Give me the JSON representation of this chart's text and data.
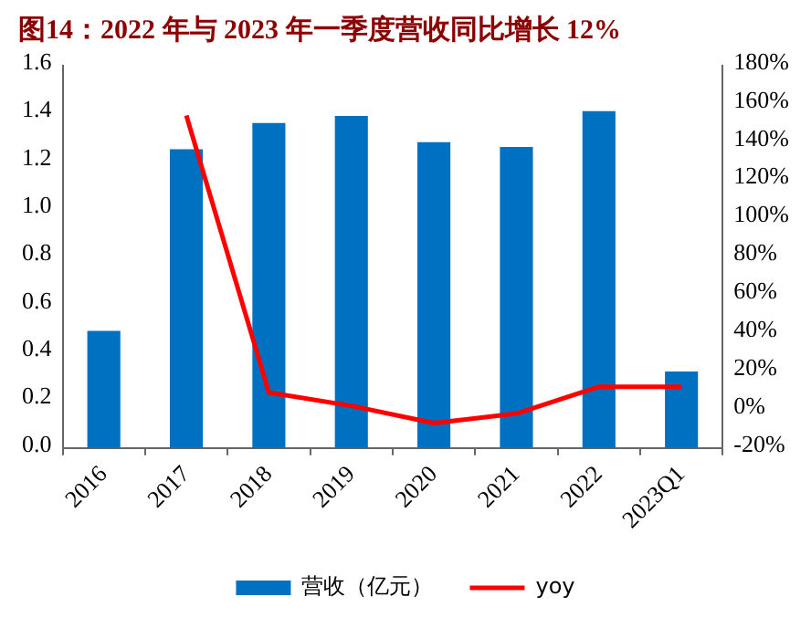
{
  "chart_data": {
    "type": "bar",
    "title": "图14：2022 年与 2023 年一季度营收同比增长 12%",
    "categories": [
      "2016",
      "2017",
      "2018",
      "2019",
      "2020",
      "2021",
      "2022",
      "2023Q1"
    ],
    "series": [
      {
        "name": "营收（亿元）",
        "color": "#0070c0",
        "values": [
          0.49,
          1.25,
          1.36,
          1.39,
          1.28,
          1.26,
          1.41,
          0.32
        ]
      },
      {
        "name": "yoy",
        "type": "line",
        "axis": "y2",
        "color": "#ff0000",
        "values": [
          null,
          154,
          9,
          2,
          -7,
          -2,
          12,
          12
        ]
      }
    ],
    "ylim": [
      0,
      1.6
    ],
    "yticks": [
      {
        "value": 0,
        "label": "0.0"
      },
      {
        "value": 0.2,
        "label": "0.2"
      },
      {
        "value": 0.4,
        "label": "0.4"
      },
      {
        "value": 0.6,
        "label": "0.6"
      },
      {
        "value": 0.8,
        "label": "0.8"
      },
      {
        "value": 1,
        "label": "1.0"
      },
      {
        "value": 1.2,
        "label": "1.2"
      },
      {
        "value": 1.4,
        "label": "1.4"
      },
      {
        "value": 1.6,
        "label": "1.6"
      }
    ],
    "y2lim": [
      -20,
      180
    ],
    "y2ticks": [
      {
        "value": -20,
        "label": "-20%"
      },
      {
        "value": 0,
        "label": "0%"
      },
      {
        "value": 20,
        "label": "20%"
      },
      {
        "value": 40,
        "label": "40%"
      },
      {
        "value": 60,
        "label": "60%"
      },
      {
        "value": 80,
        "label": "80%"
      },
      {
        "value": 100,
        "label": "100%"
      },
      {
        "value": 120,
        "label": "120%"
      },
      {
        "value": 140,
        "label": "140%"
      },
      {
        "value": 160,
        "label": "160%"
      },
      {
        "value": 180,
        "label": "180%"
      }
    ],
    "grid": false,
    "legend": "bottom",
    "marker": "none",
    "line_style": "solid"
  }
}
